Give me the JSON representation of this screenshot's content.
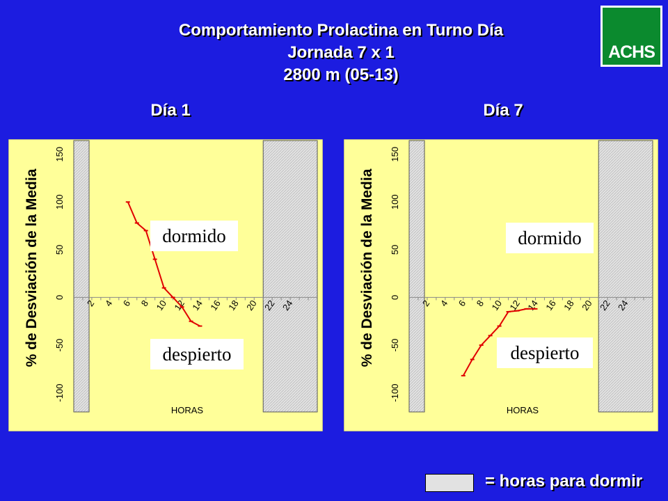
{
  "header": {
    "title_lines": [
      "Comportamiento Prolactina en Turno Día",
      "Jornada 7 x 1",
      "2800 m (05-13)"
    ]
  },
  "logo": {
    "text": "ACHS",
    "colors": {
      "green": "#0b8a2e"
    }
  },
  "colors": {
    "background": "#1c1ce0",
    "plot_area": "#ffff99",
    "line": "#e00000",
    "sleep_band": "#e2e2e2"
  },
  "legend": {
    "text": "= horas para dormir"
  },
  "panels": [
    {
      "day_label": "Día 1",
      "annotations": {
        "asleep": "dormido",
        "awake": "despierto"
      }
    },
    {
      "day_label": "Día 7",
      "annotations": {
        "asleep": "dormido",
        "awake": "despierto"
      }
    }
  ],
  "chart_data": [
    {
      "type": "line",
      "title": "Día 1",
      "xlabel": "HORAS",
      "ylabel": "% de Desviación de la Media",
      "x_ticks": [
        2,
        4,
        6,
        8,
        10,
        12,
        14,
        16,
        18,
        20,
        22,
        24
      ],
      "y_ticks": [
        -100,
        -50,
        0,
        50,
        100,
        150
      ],
      "xlim": [
        0,
        27
      ],
      "ylim": [
        -120,
        160
      ],
      "sleep_bands": [
        [
          0,
          1.7
        ],
        [
          21,
          27
        ]
      ],
      "series": [
        {
          "x": [
            6,
            7,
            8,
            9,
            10,
            11,
            12,
            13,
            14
          ],
          "values": [
            100,
            78,
            70,
            40,
            10,
            0,
            -10,
            -25,
            -30
          ]
        }
      ]
    },
    {
      "type": "line",
      "title": "Día 7",
      "xlabel": "HORAS",
      "ylabel": "% de Desviación de la Media",
      "x_ticks": [
        2,
        4,
        6,
        8,
        10,
        12,
        14,
        16,
        18,
        20,
        22,
        24
      ],
      "y_ticks": [
        -100,
        -50,
        0,
        50,
        100,
        150
      ],
      "xlim": [
        0,
        27
      ],
      "ylim": [
        -120,
        160
      ],
      "sleep_bands": [
        [
          0,
          1.7
        ],
        [
          21,
          27
        ]
      ],
      "series": [
        {
          "x": [
            6,
            7,
            8,
            9,
            10,
            11,
            12,
            13,
            14
          ],
          "values": [
            -82,
            -65,
            -50,
            -40,
            -30,
            -15,
            -14,
            -12,
            -12
          ]
        }
      ]
    }
  ]
}
